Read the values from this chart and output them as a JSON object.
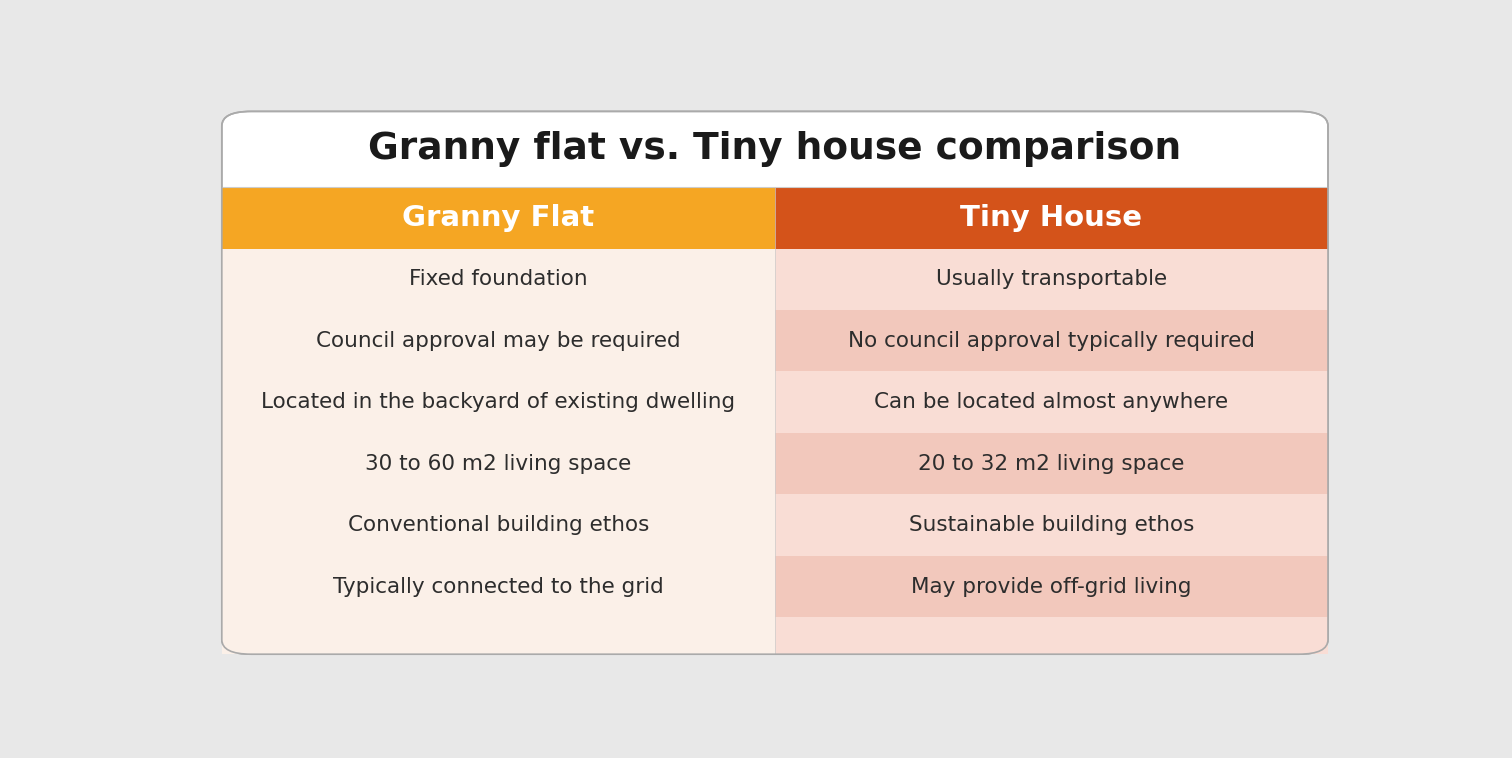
{
  "title": "Granny flat vs. Tiny house comparison",
  "col1_header": "Granny Flat",
  "col2_header": "Tiny House",
  "col1_color": "#F5A623",
  "col2_color": "#D4531A",
  "col1_bg": "#FBF0E8",
  "col2_bg_light": "#F9DDD5",
  "col2_bg_dark": "#F2C8BC",
  "header_text_color": "#FFFFFF",
  "title_color": "#1A1A1A",
  "text_color": "#2D2D2D",
  "rows": [
    [
      "Fixed foundation",
      "Usually transportable"
    ],
    [
      "Council approval may be required",
      "No council approval typically required"
    ],
    [
      "Located in the backyard of existing dwelling",
      "Can be located almost anywhere"
    ],
    [
      "30 to 60 m2 living space",
      "20 to 32 m2 living space"
    ],
    [
      "Conventional building ethos",
      "Sustainable building ethos"
    ],
    [
      "Typically connected to the grid",
      "May provide off-grid living"
    ]
  ],
  "figsize": [
    15.12,
    7.58
  ],
  "dpi": 100,
  "page_bg": "#E8E8E8",
  "card_bg": "#FFFFFF",
  "border_color": "#AAAAAA"
}
